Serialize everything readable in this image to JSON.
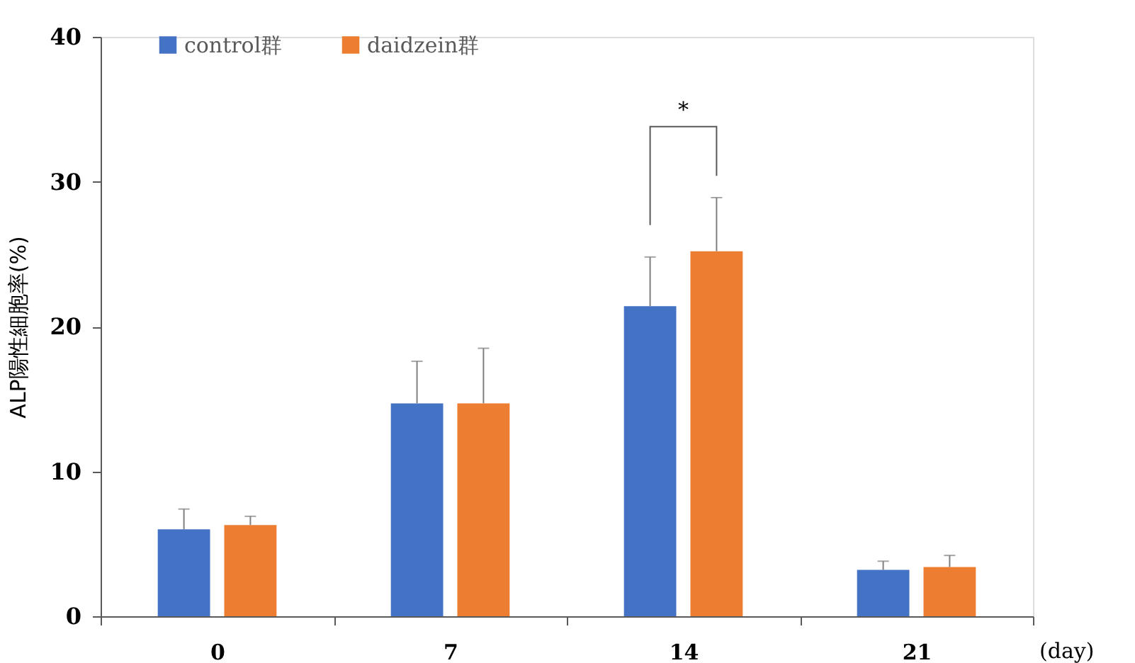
{
  "chart_data": {
    "type": "bar",
    "ylabel": "ALP陽性細胞率(%)",
    "xlabel": "(day)",
    "categories": [
      "0",
      "7",
      "14",
      "21"
    ],
    "series": [
      {
        "name": "control群",
        "color": "#4472c4",
        "values": [
          6.0,
          14.7,
          21.4,
          3.2
        ],
        "errors": [
          [
            6.0,
            7.4
          ],
          [
            14.7,
            17.6
          ],
          [
            21.4,
            24.8
          ],
          [
            3.2,
            3.8
          ]
        ]
      },
      {
        "name": "daidzein群",
        "color": "#ed7d31",
        "values": [
          6.3,
          14.7,
          25.2,
          3.4
        ],
        "errors": [
          [
            6.3,
            6.9
          ],
          [
            14.7,
            18.5
          ],
          [
            25.2,
            28.9
          ],
          [
            3.4,
            4.2
          ]
        ]
      }
    ],
    "ylim": [
      0,
      40
    ],
    "yticks": [
      0,
      10,
      20,
      30,
      40
    ],
    "grid": false,
    "legend": "top left",
    "annotations": [
      "*"
    ]
  }
}
